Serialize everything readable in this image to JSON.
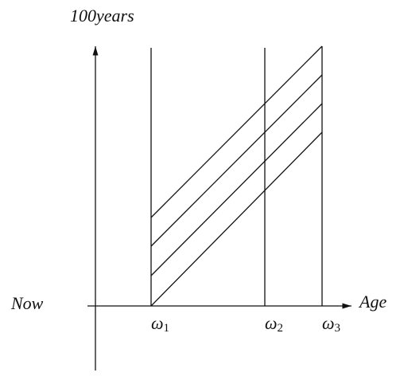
{
  "axes": {
    "vertical_label": "100years",
    "horizontal_left_label": "Now",
    "horizontal_right_label": "Age"
  },
  "markers": [
    {
      "symbol": "ω",
      "subscript": "1"
    },
    {
      "symbol": "ω",
      "subscript": "2"
    },
    {
      "symbol": "ω",
      "subscript": "3"
    }
  ]
}
